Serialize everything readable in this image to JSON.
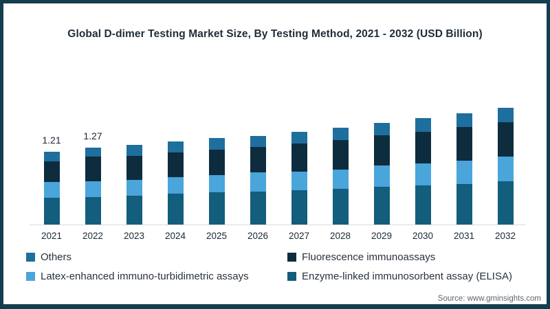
{
  "frame": {
    "border_color": "#123f4e",
    "background": "#ffffff"
  },
  "title": "Global D-dimer Testing Market Size, By Testing Method, 2021 - 2032 (USD Billion)",
  "source": "Source: www.gminsights.com",
  "colors": {
    "title_text": "#1e2c3a",
    "axis_label_text": "#1c2733",
    "legend_text": "#29323c",
    "source_text": "#5b6670",
    "axis_line": "#d9d9d9"
  },
  "chart_data": {
    "type": "bar",
    "stacked": true,
    "title": "Global D-dimer Testing Market Size, By Testing Method, 2021 - 2032 (USD Billion)",
    "unit": "USD Billion",
    "xlabel": "",
    "ylabel": "",
    "gridlines": false,
    "legend_position": "bottom",
    "categories": [
      "2021",
      "2022",
      "2023",
      "2024",
      "2025",
      "2026",
      "2027",
      "2028",
      "2029",
      "2030",
      "2031",
      "2032"
    ],
    "series": [
      {
        "key": "elisa",
        "name": "Enzyme-linked immunosorbent assay (ELISA)",
        "color": "#135d7d",
        "values": [
          0.44,
          0.46,
          0.48,
          0.51,
          0.53,
          0.55,
          0.57,
          0.59,
          0.62,
          0.65,
          0.67,
          0.72
        ]
      },
      {
        "key": "latex",
        "name": "Latex-enhanced immuno-turbidimetric assays",
        "color": "#49a5da",
        "values": [
          0.26,
          0.26,
          0.26,
          0.28,
          0.29,
          0.31,
          0.31,
          0.32,
          0.36,
          0.36,
          0.39,
          0.4
        ]
      },
      {
        "key": "fluorescence",
        "name": "Fluorescence immunoassays",
        "color": "#0d2c3e",
        "values": [
          0.35,
          0.4,
          0.4,
          0.4,
          0.42,
          0.42,
          0.46,
          0.49,
          0.5,
          0.53,
          0.55,
          0.57
        ]
      },
      {
        "key": "others",
        "name": "Others",
        "color": "#1e6f9d",
        "values": [
          0.16,
          0.15,
          0.18,
          0.19,
          0.19,
          0.19,
          0.19,
          0.2,
          0.2,
          0.22,
          0.23,
          0.24
        ]
      }
    ],
    "totals": [
      1.21,
      1.27,
      1.32,
      1.38,
      1.43,
      1.47,
      1.53,
      1.6,
      1.68,
      1.76,
      1.84,
      1.93
    ],
    "bar_value_labels": [
      "1.21",
      "1.27",
      "",
      "",
      "",
      "",
      "",
      "",
      "",
      "",
      "",
      ""
    ],
    "legend_order": [
      "others",
      "fluorescence",
      "latex",
      "elisa"
    ]
  }
}
